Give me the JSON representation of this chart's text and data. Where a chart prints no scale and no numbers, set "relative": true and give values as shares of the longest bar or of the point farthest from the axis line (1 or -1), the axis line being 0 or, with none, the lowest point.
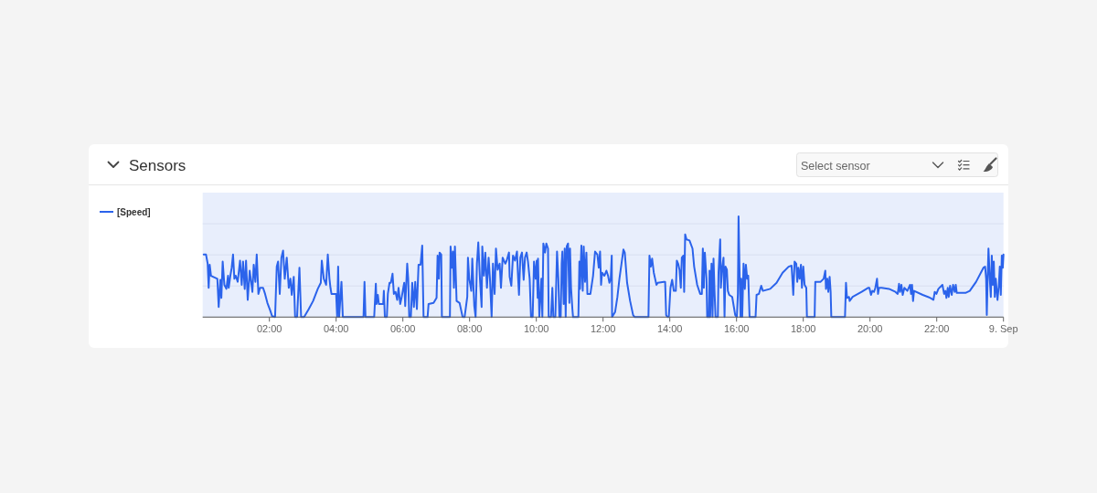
{
  "chart_data": {
    "type": "line",
    "title": "Sensors",
    "annotations": [
      "Select sensor"
    ],
    "relative": true,
    "x": [
      0.03,
      0.1,
      0.15,
      0.18,
      0.21,
      0.25,
      0.44,
      0.48,
      0.53,
      0.56,
      0.6,
      0.65,
      0.71,
      0.76,
      0.78,
      0.83,
      0.87,
      0.91,
      0.95,
      0.99,
      1.05,
      1.12,
      1.17,
      1.21,
      1.26,
      1.3,
      1.35,
      1.41,
      1.49,
      1.53,
      1.58,
      1.62,
      1.67,
      1.72,
      1.81,
      1.87,
      1.94,
      2.02,
      2.08,
      2.17,
      2.22,
      2.26,
      2.31,
      2.36,
      2.41,
      2.46,
      2.52,
      2.58,
      2.63,
      2.67,
      2.73,
      2.77,
      2.83,
      2.9,
      2.95,
      3.04,
      3.18,
      3.31,
      3.45,
      3.54,
      3.57,
      3.63,
      3.7,
      3.75,
      3.8,
      3.83,
      3.86,
      4.0,
      4.03,
      4.06,
      4.09,
      4.16,
      4.2,
      4.82,
      4.85,
      4.88,
      5.14,
      5.19,
      5.21,
      5.25,
      5.28,
      5.41,
      5.43,
      5.46,
      5.52,
      5.55,
      5.6,
      5.64,
      5.69,
      5.73,
      5.78,
      5.83,
      5.87,
      5.92,
      5.96,
      6.04,
      6.07,
      6.13,
      6.16,
      6.19,
      6.24,
      6.28,
      6.33,
      6.37,
      6.42,
      6.45,
      6.47,
      6.53,
      6.58,
      6.62,
      6.74,
      6.77,
      6.92,
      7.01,
      7.04,
      7.08,
      7.1,
      7.15,
      7.17,
      7.41,
      7.43,
      7.47,
      7.5,
      7.53,
      7.56,
      7.61,
      7.7,
      7.79,
      7.85,
      7.93,
      7.95,
      7.99,
      8.05,
      8.08,
      8.14,
      8.18,
      8.22,
      8.26,
      8.31,
      8.36,
      8.38,
      8.43,
      8.47,
      8.52,
      8.57,
      8.61,
      8.66,
      8.7,
      8.75,
      8.79,
      8.84,
      8.9,
      8.94,
      8.99,
      9.07,
      9.11,
      9.18,
      9.2,
      9.25,
      9.3,
      9.36,
      9.42,
      9.45,
      9.48,
      9.52,
      9.57,
      9.62,
      9.66,
      9.71,
      9.75,
      9.8,
      9.84,
      9.89,
      9.93,
      9.98,
      10.01,
      10.04,
      10.05,
      10.09,
      10.15,
      10.18,
      10.21,
      10.26,
      10.3,
      10.35,
      10.37,
      10.44,
      10.48,
      10.51,
      10.57,
      10.62,
      10.66,
      10.69,
      10.73,
      10.76,
      10.78,
      10.82,
      10.85,
      10.88,
      10.91,
      10.95,
      10.99,
      11.01,
      11.04,
      11.08,
      11.1,
      11.26,
      11.29,
      11.31,
      11.35,
      11.39,
      11.42,
      11.46,
      11.5,
      11.53,
      11.62,
      11.7,
      11.76,
      11.83,
      11.87,
      11.91,
      11.94,
      11.97,
      12.04,
      12.1,
      12.15,
      12.19,
      12.23,
      12.26,
      12.27,
      12.36,
      12.43,
      12.49,
      12.61,
      12.65,
      12.72,
      12.81,
      12.9,
      12.95,
      13.36,
      13.39,
      13.43,
      13.47,
      13.52,
      13.56,
      13.6,
      13.64,
      13.82,
      13.86,
      13.89,
      13.93,
      13.97,
      14.02,
      14.07,
      14.12,
      14.18,
      14.21,
      14.25,
      14.29,
      14.33,
      14.36,
      14.41,
      14.43,
      14.46,
      14.5,
      14.59,
      14.68,
      14.73,
      14.82,
      14.91,
      14.96,
      14.99,
      15.02,
      15.05,
      15.1,
      15.12,
      15.17,
      15.19,
      15.21,
      15.25,
      15.28,
      15.31,
      15.34,
      15.37,
      15.44,
      15.46,
      15.51,
      15.53,
      15.57,
      15.61,
      15.64,
      15.67,
      15.71,
      15.74,
      15.78,
      15.87,
      15.96,
      16.01,
      16.04,
      16.06,
      16.09,
      16.12,
      16.14,
      16.17,
      16.21,
      16.25,
      16.28,
      16.32,
      16.35,
      16.39,
      16.57,
      16.6,
      16.67,
      16.74,
      16.79,
      17.01,
      17.2,
      17.38,
      17.56,
      17.65,
      17.7,
      17.74,
      17.79,
      17.82,
      17.85,
      17.89,
      17.93,
      17.96,
      18.0,
      18.04,
      18.09,
      18.11,
      18.34,
      18.36,
      18.52,
      18.61,
      18.66,
      18.68,
      18.72,
      18.75,
      18.79,
      18.82,
      18.84,
      19.25,
      19.28,
      19.31,
      19.37,
      19.39,
      19.48,
      19.75,
      19.94,
      19.98,
      20.03,
      20.07,
      20.12,
      20.16,
      20.21,
      20.24,
      20.27,
      20.35,
      20.57,
      20.76,
      20.83,
      20.87,
      20.9,
      20.94,
      20.98,
      21.03,
      21.12,
      21.2,
      21.23,
      21.26,
      21.29,
      21.32,
      21.58,
      21.81,
      21.9,
      21.94,
      21.99,
      22.05,
      22.17,
      22.22,
      22.26,
      22.29,
      22.33,
      22.36,
      22.4,
      22.45,
      22.49,
      22.54,
      22.57,
      22.6,
      22.86,
      22.99,
      23.18,
      23.4,
      23.45,
      23.48,
      23.5,
      23.53,
      23.55,
      23.59,
      23.62,
      23.65,
      23.68,
      23.71,
      23.74,
      23.77,
      23.82,
      23.86,
      23.89,
      23.92,
      23.95,
      23.98,
      24.0
    ],
    "series": [
      {
        "name": "[Speed]",
        "color": "#2b63eb",
        "values": [
          0.62,
          0.62,
          0.53,
          0.29,
          0.52,
          0.41,
          0.38,
          0.1,
          0.37,
          0.19,
          0.55,
          0.32,
          0.28,
          0.41,
          0.29,
          0.41,
          0.49,
          0.62,
          0.38,
          0.41,
          0.35,
          0.56,
          0.32,
          0.55,
          0.28,
          0.56,
          0.17,
          0.46,
          0.25,
          0.52,
          0.35,
          0.62,
          0.23,
          0.29,
          0.29,
          0.23,
          0.14,
          0.07,
          0.01,
          0,
          0.5,
          0.55,
          0.23,
          0.59,
          0.66,
          0.38,
          0.59,
          0.29,
          0.38,
          0.22,
          0.4,
          0,
          0,
          0.49,
          0,
          0,
          0.08,
          0.16,
          0.28,
          0.34,
          0.56,
          0.38,
          0.32,
          0.62,
          0.38,
          0.29,
          0.23,
          0.23,
          0,
          0.5,
          0,
          0.35,
          0,
          0,
          0.35,
          0,
          0,
          0.33,
          0.13,
          0.22,
          0.13,
          0.13,
          0.26,
          0,
          0,
          0.23,
          0.34,
          0.34,
          0.43,
          0.23,
          0.25,
          0.17,
          0.29,
          0.13,
          0.19,
          0.34,
          0.11,
          0.53,
          0.38,
          0,
          0,
          0.34,
          0.1,
          0.35,
          0.08,
          0.35,
          0.52,
          0.52,
          0.71,
          0,
          0,
          0.13,
          0.14,
          0.19,
          0.61,
          0.38,
          0.64,
          0.62,
          0,
          0,
          0.7,
          0.49,
          0.65,
          0.29,
          0.7,
          0.16,
          0.14,
          0,
          0,
          0.2,
          0.59,
          0.38,
          0.26,
          0.58,
          0.11,
          0,
          0.53,
          0.74,
          0.38,
          0.1,
          0.7,
          0.41,
          0.64,
          0.29,
          0.59,
          0.38,
          0,
          0.53,
          0.23,
          0.68,
          0.47,
          0.53,
          0.29,
          0.59,
          0.53,
          0.56,
          0.64,
          0.4,
          0.31,
          0.61,
          0.56,
          0.65,
          0.41,
          0.22,
          0.59,
          0.64,
          0.37,
          0.59,
          0.64,
          0.55,
          0.38,
          0,
          0,
          0.55,
          0.38,
          0.56,
          0.19,
          0.58,
          0,
          0.38,
          0,
          0.73,
          0.64,
          0.73,
          0.68,
          0,
          0,
          0.29,
          0,
          0,
          0.65,
          0.38,
          0,
          0,
          0.53,
          0.65,
          0.13,
          0.68,
          0,
          0.7,
          0.73,
          0.14,
          0.68,
          0.29,
          0.08,
          0,
          0,
          0.55,
          0.28,
          0.71,
          0.26,
          0.7,
          0.35,
          0.64,
          0.23,
          0.23,
          0.41,
          0.65,
          0.62,
          0.49,
          0.65,
          0.32,
          0.44,
          0.41,
          0.46,
          0.41,
          0.34,
          0.38,
          0.61,
          0,
          0.05,
          0.2,
          0.38,
          0.67,
          0.64,
          0.34,
          0.16,
          0.02,
          0,
          0,
          0.61,
          0.5,
          0.58,
          0.44,
          0.38,
          0.32,
          0.34,
          0.35,
          0.35,
          0.02,
          0,
          0,
          0.29,
          0.37,
          0.26,
          0.26,
          0.56,
          0.53,
          0.47,
          0.29,
          0.59,
          0.61,
          0.25,
          0.82,
          0.77,
          0.76,
          0.68,
          0.5,
          0.32,
          0.23,
          0.23,
          0.68,
          0.29,
          0.64,
          0.38,
          0,
          0,
          0.46,
          0,
          0.53,
          0,
          0.58,
          0.26,
          0,
          0,
          0.44,
          0.77,
          0.29,
          0.49,
          0.59,
          0,
          0.5,
          0.47,
          0.26,
          0.22,
          0.2,
          0.02,
          0,
          0.23,
          1,
          0.47,
          0,
          0.38,
          0,
          0.53,
          0.28,
          0.52,
          0.38,
          0.41,
          0,
          0,
          0.22,
          0.23,
          0.31,
          0.26,
          0.28,
          0.34,
          0.44,
          0.5,
          0.51,
          0.22,
          0.55,
          0.53,
          0.35,
          0.49,
          0.38,
          0.52,
          0.29,
          0.5,
          0.32,
          0.29,
          0,
          0,
          0.35,
          0.35,
          0.38,
          0.46,
          0.28,
          0.38,
          0.25,
          0.4,
          0.25,
          0,
          0,
          0.34,
          0.19,
          0.2,
          0.16,
          0.2,
          0.25,
          0.29,
          0.29,
          0.22,
          0.26,
          0.25,
          0.29,
          0.38,
          0.23,
          0.29,
          0.29,
          0.28,
          0.25,
          0.23,
          0.33,
          0.25,
          0.32,
          0.22,
          0.29,
          0.26,
          0.32,
          0.23,
          0.32,
          0.16,
          0.26,
          0.22,
          0.19,
          0.17,
          0.25,
          0.23,
          0.28,
          0.32,
          0.23,
          0.26,
          0.19,
          0.29,
          0.2,
          0.31,
          0.22,
          0.32,
          0.25,
          0.32,
          0.24,
          0.24,
          0.26,
          0.35,
          0.49,
          0.5,
          0.38,
          0.02,
          0.44,
          0.68,
          0.38,
          0.2,
          0.61,
          0.32,
          0.55,
          0.2,
          0.38,
          0.17,
          0.31,
          0.5,
          0.22,
          0.61,
          0.49,
          0.62
        ]
      }
    ],
    "xlim": [
      0,
      24
    ],
    "xticks": [
      {
        "value": 2,
        "label": "02:00"
      },
      {
        "value": 4,
        "label": "04:00"
      },
      {
        "value": 6,
        "label": "06:00"
      },
      {
        "value": 8,
        "label": "08:00"
      },
      {
        "value": 10,
        "label": "10:00"
      },
      {
        "value": 12,
        "label": "12:00"
      },
      {
        "value": 14,
        "label": "14:00"
      },
      {
        "value": 16,
        "label": "16:00"
      },
      {
        "value": 18,
        "label": "18:00"
      },
      {
        "value": 20,
        "label": "20:00"
      },
      {
        "value": 22,
        "label": "22:00"
      },
      {
        "value": 24,
        "label": "9. Sep"
      }
    ],
    "grid": "y",
    "legend": "left"
  }
}
